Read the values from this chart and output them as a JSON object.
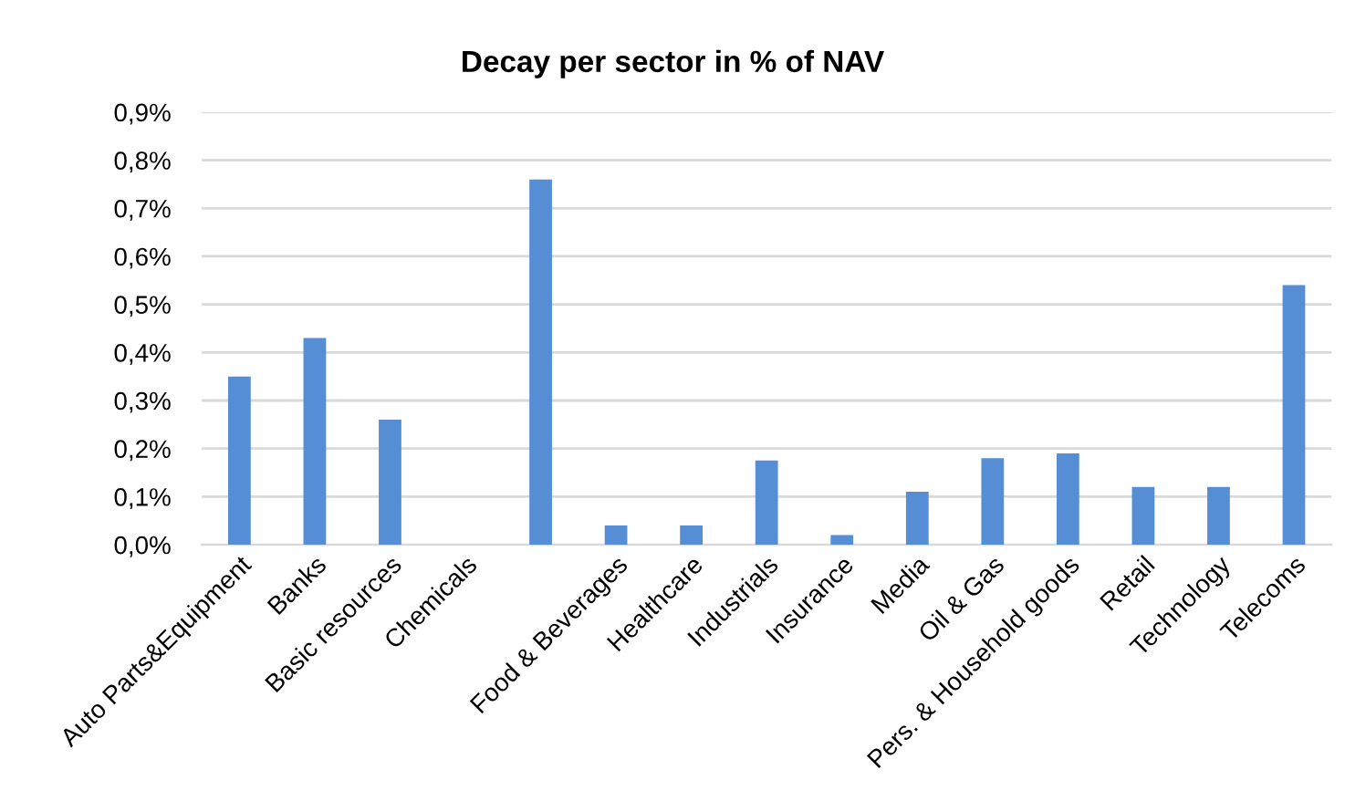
{
  "chart_data": {
    "type": "bar",
    "title": "Decay per sector in % of NAV",
    "categories": [
      "Auto Parts&Equipment",
      "Banks",
      "Basic resources",
      "Chemicals",
      null,
      "Food & Beverages",
      "Healthcare",
      "Industrials",
      "Insurance",
      "Media",
      "Oil & Gas",
      "Pers. & Household goods",
      "Retail",
      "Technology",
      "Telecoms"
    ],
    "values": [
      0.35,
      0.43,
      0.26,
      0,
      0.76,
      0.04,
      0.04,
      0.175,
      0.02,
      0.11,
      0.18,
      0.19,
      0.12,
      0.12,
      0.54
    ],
    "color": "#558ed5",
    "ylim": [
      0,
      0.9
    ],
    "yticks": [
      {
        "value": 0,
        "label": "0,0%"
      },
      {
        "value": 0.1,
        "label": "0,1%"
      },
      {
        "value": 0.2,
        "label": "0,2%"
      },
      {
        "value": 0.3,
        "label": "0,3%"
      },
      {
        "value": 0.4,
        "label": "0,4%"
      },
      {
        "value": 0.5,
        "label": "0,5%"
      },
      {
        "value": 0.6,
        "label": "0,6%"
      },
      {
        "value": 0.7,
        "label": "0,7%"
      },
      {
        "value": 0.8,
        "label": "0,8%"
      },
      {
        "value": 0.9,
        "label": "0,9%"
      }
    ],
    "grid": "y"
  }
}
